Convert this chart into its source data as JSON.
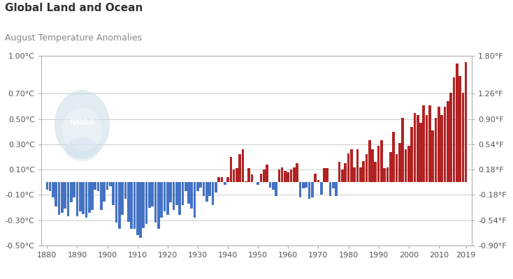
{
  "title": "Global Land and Ocean",
  "subtitle": "August Temperature Anomalies",
  "years": [
    1880,
    1881,
    1882,
    1883,
    1884,
    1885,
    1886,
    1887,
    1888,
    1889,
    1890,
    1891,
    1892,
    1893,
    1894,
    1895,
    1896,
    1897,
    1898,
    1899,
    1900,
    1901,
    1902,
    1903,
    1904,
    1905,
    1906,
    1907,
    1908,
    1909,
    1910,
    1911,
    1912,
    1913,
    1914,
    1915,
    1916,
    1917,
    1918,
    1919,
    1920,
    1921,
    1922,
    1923,
    1924,
    1925,
    1926,
    1927,
    1928,
    1929,
    1930,
    1931,
    1932,
    1933,
    1934,
    1935,
    1936,
    1937,
    1938,
    1939,
    1940,
    1941,
    1942,
    1943,
    1944,
    1945,
    1946,
    1947,
    1948,
    1949,
    1950,
    1951,
    1952,
    1953,
    1954,
    1955,
    1956,
    1957,
    1958,
    1959,
    1960,
    1961,
    1962,
    1963,
    1964,
    1965,
    1966,
    1967,
    1968,
    1969,
    1970,
    1971,
    1972,
    1973,
    1974,
    1975,
    1976,
    1977,
    1978,
    1979,
    1980,
    1981,
    1982,
    1983,
    1984,
    1985,
    1986,
    1987,
    1988,
    1989,
    1990,
    1991,
    1992,
    1993,
    1994,
    1995,
    1996,
    1997,
    1998,
    1999,
    2000,
    2001,
    2002,
    2003,
    2004,
    2005,
    2006,
    2007,
    2008,
    2009,
    2010,
    2011,
    2012,
    2013,
    2014,
    2015,
    2016,
    2017,
    2018,
    2019
  ],
  "anomalies": [
    -0.06,
    -0.07,
    -0.12,
    -0.19,
    -0.26,
    -0.24,
    -0.21,
    -0.27,
    -0.16,
    -0.12,
    -0.27,
    -0.23,
    -0.25,
    -0.28,
    -0.24,
    -0.22,
    -0.06,
    -0.07,
    -0.22,
    -0.15,
    -0.06,
    -0.03,
    -0.18,
    -0.32,
    -0.37,
    -0.26,
    -0.13,
    -0.31,
    -0.37,
    -0.37,
    -0.42,
    -0.44,
    -0.36,
    -0.33,
    -0.2,
    -0.19,
    -0.32,
    -0.37,
    -0.28,
    -0.23,
    -0.26,
    -0.16,
    -0.22,
    -0.18,
    -0.26,
    -0.18,
    -0.07,
    -0.17,
    -0.21,
    -0.28,
    -0.07,
    -0.04,
    -0.11,
    -0.15,
    -0.11,
    -0.18,
    -0.08,
    0.04,
    0.04,
    -0.02,
    0.04,
    0.2,
    0.1,
    0.11,
    0.22,
    0.26,
    0.01,
    0.11,
    0.06,
    0.0,
    -0.02,
    0.07,
    0.1,
    0.14,
    -0.04,
    -0.06,
    -0.11,
    0.1,
    0.12,
    0.09,
    0.08,
    0.1,
    0.12,
    0.15,
    -0.12,
    -0.05,
    -0.04,
    -0.13,
    -0.12,
    0.07,
    0.02,
    -0.1,
    0.11,
    0.11,
    -0.11,
    -0.05,
    -0.11,
    0.16,
    0.1,
    0.15,
    0.23,
    0.26,
    0.12,
    0.26,
    0.12,
    0.17,
    0.22,
    0.33,
    0.26,
    0.16,
    0.29,
    0.33,
    0.11,
    0.12,
    0.24,
    0.4,
    0.22,
    0.31,
    0.51,
    0.26,
    0.29,
    0.44,
    0.55,
    0.53,
    0.47,
    0.61,
    0.53,
    0.61,
    0.41,
    0.51,
    0.6,
    0.53,
    0.6,
    0.64,
    0.71,
    0.83,
    0.94,
    0.84,
    0.71,
    0.95
  ],
  "bar_color_positive": "#b22222",
  "bar_color_negative": "#4472c4",
  "background_color": "#ffffff",
  "grid_color": "#cccccc",
  "ylim_celsius": [
    -0.5,
    1.0
  ],
  "yticks_celsius": [
    -0.5,
    -0.3,
    -0.1,
    0.1,
    0.3,
    0.5,
    0.7,
    1.0
  ],
  "ytick_labels_celsius": [
    "-0.50°C",
    "-0.30°C",
    "-0.10°C",
    "0.10°C",
    "0.30°C",
    "0.50°C",
    "0.70°C",
    "1.00°C"
  ],
  "yticks_fahrenheit": [
    -0.9,
    -0.54,
    -0.18,
    0.18,
    0.54,
    0.9,
    1.26,
    1.8
  ],
  "ytick_labels_fahrenheit": [
    "-0.90°F",
    "-0.54°F",
    "-0.18°F",
    "0.18°F",
    "0.54°F",
    "0.90°F",
    "1.26°F",
    "1.80°F"
  ],
  "xticks": [
    1880,
    1890,
    1900,
    1910,
    1920,
    1930,
    1940,
    1950,
    1960,
    1970,
    1980,
    1990,
    2000,
    2010,
    2019
  ],
  "title_fontsize": 11,
  "subtitle_fontsize": 9,
  "tick_fontsize": 8,
  "noaa_logo_color": "#c8dce8",
  "noaa_text_color": "#ffffff",
  "xlim": [
    1878,
    2021
  ]
}
